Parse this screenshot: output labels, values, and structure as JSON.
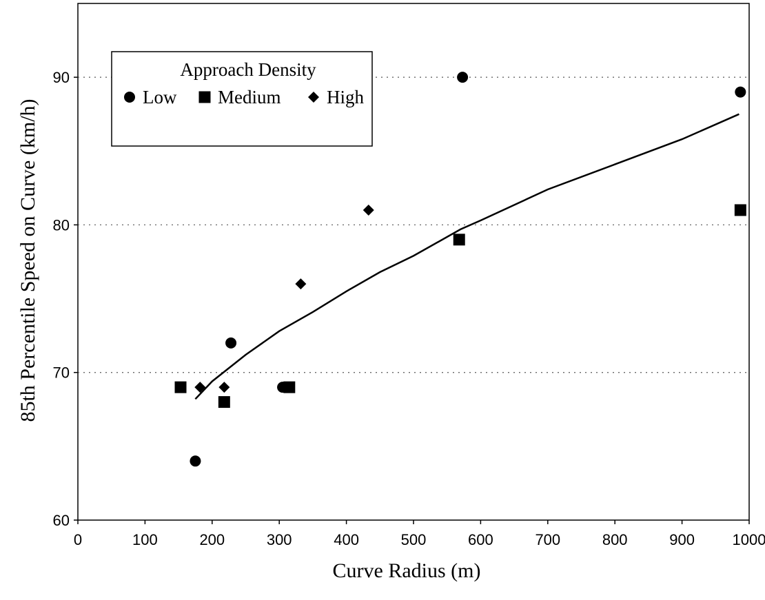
{
  "chart_data": {
    "type": "scatter",
    "xlabel": "Curve Radius (m)",
    "ylabel": "85th Percentile Speed on Curve (km/h)",
    "xlim": [
      0,
      1000
    ],
    "ylim": [
      60,
      95
    ],
    "x_ticks": [
      0,
      100,
      200,
      300,
      400,
      500,
      600,
      700,
      800,
      900,
      1000
    ],
    "y_ticks": [
      60,
      70,
      80,
      90
    ],
    "grid": "horizontal dotted",
    "legend": {
      "title": "Approach Density",
      "placement": "top-left"
    },
    "series": [
      {
        "name": "Low",
        "marker": "circle",
        "points": [
          [
            175,
            64
          ],
          [
            228,
            72
          ],
          [
            305,
            69
          ],
          [
            310,
            69
          ],
          [
            573,
            90
          ],
          [
            987,
            89
          ]
        ]
      },
      {
        "name": "Medium",
        "marker": "square",
        "points": [
          [
            153,
            69
          ],
          [
            218,
            68
          ],
          [
            315,
            69
          ],
          [
            568,
            79
          ],
          [
            987,
            81
          ]
        ]
      },
      {
        "name": "High",
        "marker": "diamond",
        "points": [
          [
            182,
            69
          ],
          [
            218,
            69
          ],
          [
            332,
            76
          ],
          [
            433,
            81
          ]
        ]
      }
    ],
    "trendline": {
      "points": [
        [
          175,
          68.2
        ],
        [
          200,
          69.4
        ],
        [
          250,
          71.2
        ],
        [
          300,
          72.8
        ],
        [
          350,
          74.1
        ],
        [
          400,
          75.5
        ],
        [
          450,
          76.8
        ],
        [
          500,
          77.9
        ],
        [
          570,
          79.7
        ],
        [
          600,
          80.3
        ],
        [
          700,
          82.4
        ],
        [
          800,
          84.1
        ],
        [
          900,
          85.8
        ],
        [
          985,
          87.5
        ]
      ]
    },
    "colors": {
      "marker": "#000000",
      "line": "#000000",
      "grid": "#555555"
    }
  }
}
